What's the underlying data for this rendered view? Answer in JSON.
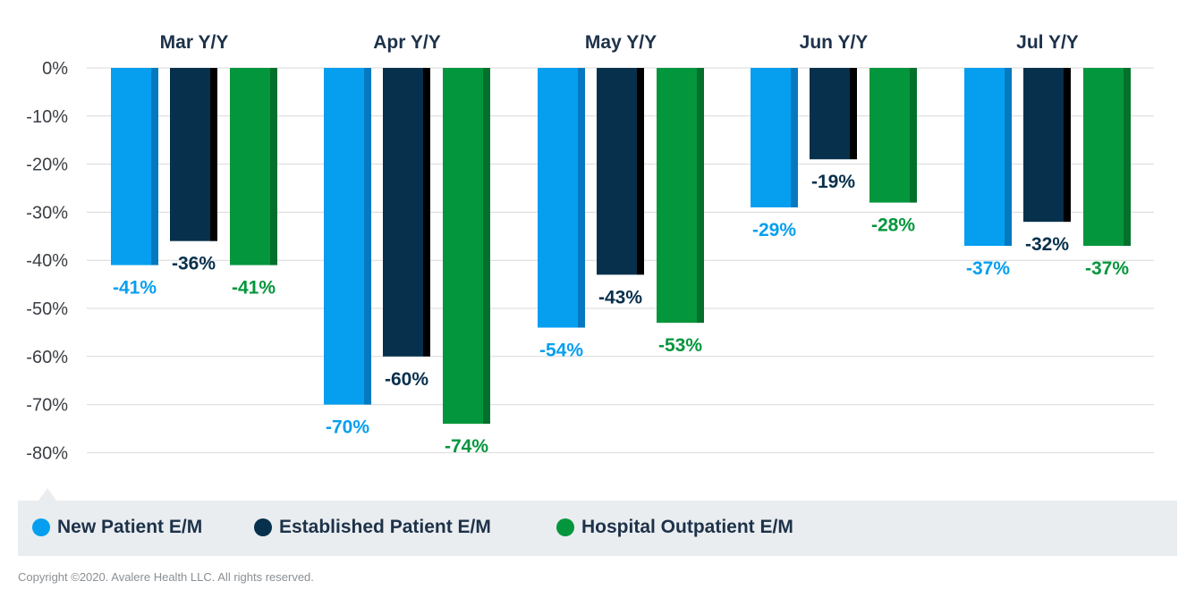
{
  "chart_data": {
    "type": "bar",
    "categories": [
      "Mar Y/Y",
      "Apr Y/Y",
      "May Y/Y",
      "Jun Y/Y",
      "Jul Y/Y"
    ],
    "series": [
      {
        "name": "New Patient E/M",
        "color": "#069ff0",
        "shade": "#0579c0",
        "values": [
          -41,
          -70,
          -54,
          -29,
          -37
        ],
        "labels": [
          "-41%",
          "-70%",
          "-54%",
          "-29%",
          "-37%"
        ]
      },
      {
        "name": "Established Patient E/M",
        "color": "#07304c",
        "shade": "#000000",
        "values": [
          -36,
          -60,
          -43,
          -19,
          -32
        ],
        "labels": [
          "-36%",
          "-60%",
          "-43%",
          "-19%",
          "-32%"
        ]
      },
      {
        "name": "Hospital Outpatient E/M",
        "color": "#04963c",
        "shade": "#03702c",
        "values": [
          -41,
          -74,
          -53,
          -28,
          -37
        ],
        "labels": [
          "-41%",
          "-74%",
          "-53%",
          "-28%",
          "-37%"
        ]
      }
    ],
    "label_colors": [
      "#069ff0",
      "#07304c",
      "#04963c"
    ],
    "y_ticks": [
      "0%",
      "-10%",
      "-20%",
      "-30%",
      "-40%",
      "-50%",
      "-60%",
      "-70%",
      "-80%"
    ],
    "ylim": [
      -80,
      0
    ],
    "grid": true,
    "legend_position": "bottom"
  },
  "legend": {
    "items": [
      {
        "label": "New Patient E/M",
        "color": "#069ff0"
      },
      {
        "label": "Established Patient E/M",
        "color": "#07304c"
      },
      {
        "label": "Hospital Outpatient E/M",
        "color": "#04963c"
      }
    ]
  },
  "footer": {
    "copyright": "Copyright ©2020. Avalere Health LLC. All rights reserved."
  }
}
